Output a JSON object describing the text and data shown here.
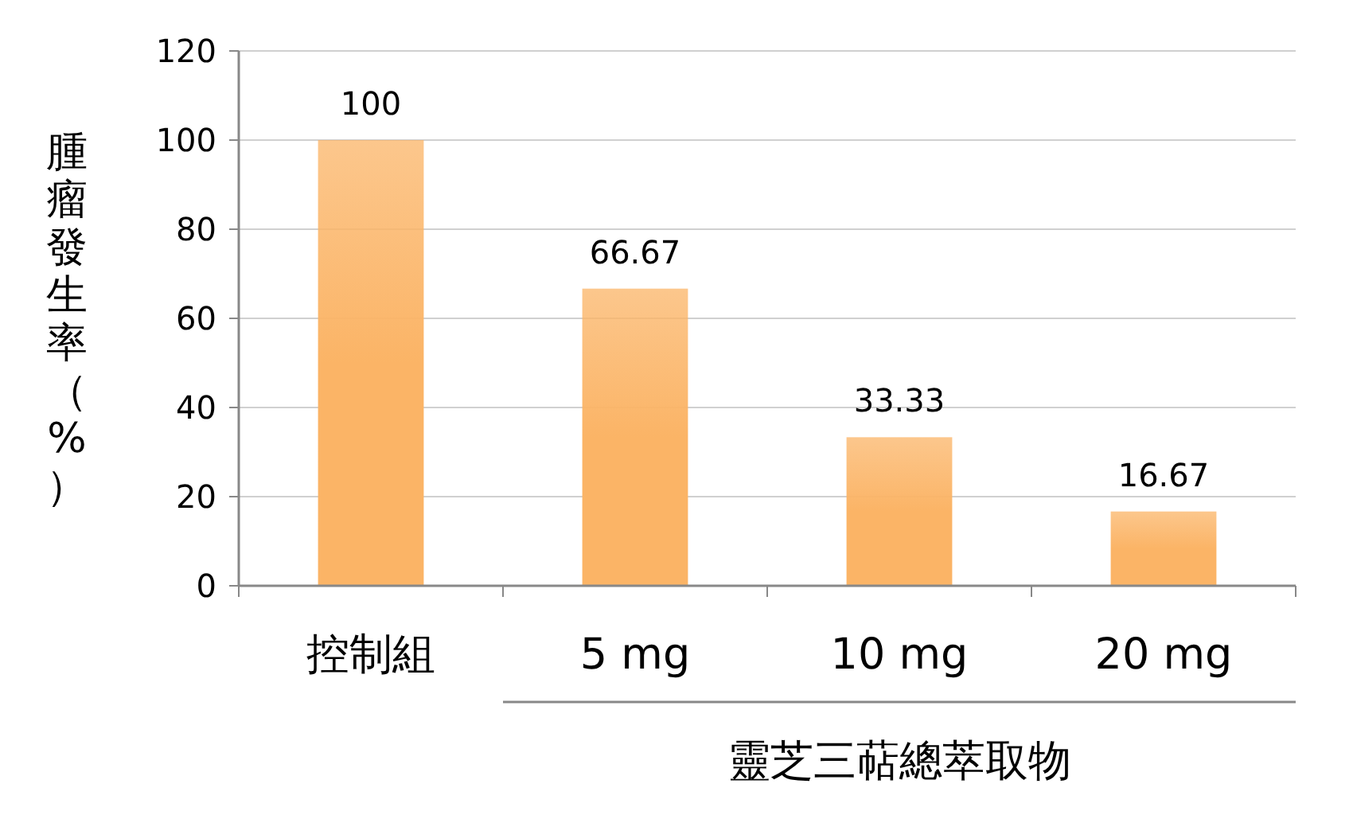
{
  "chart_data": {
    "type": "bar",
    "ylabel": "腫瘤發生率（%）",
    "categories": [
      "控制組",
      "5 mg",
      "10 mg",
      "20 mg"
    ],
    "values": [
      100,
      66.67,
      33.33,
      16.67
    ],
    "color": "#fbb466",
    "ylim": [
      0,
      120
    ],
    "yticks": [
      0,
      20,
      40,
      60,
      80,
      100,
      120
    ],
    "grid": "y",
    "data_labels": true,
    "annotations": [
      "靈芝三萜總萃取物"
    ]
  }
}
